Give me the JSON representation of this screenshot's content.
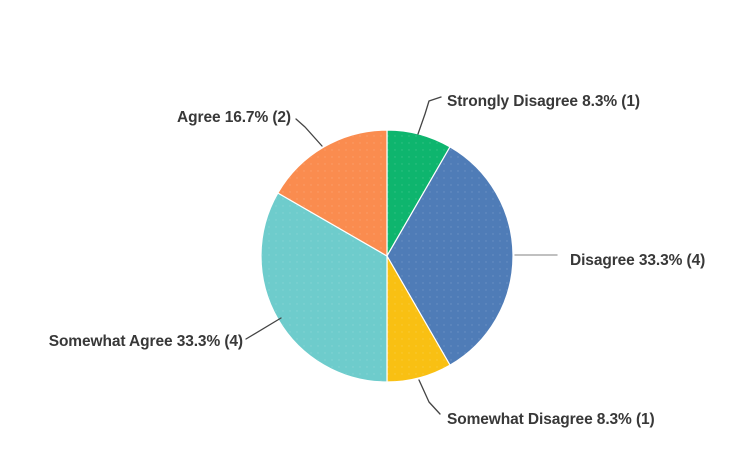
{
  "chart_data": {
    "type": "pie",
    "title": "",
    "categories": [
      "Strongly Disagree",
      "Disagree",
      "Somewhat Disagree",
      "Somewhat Agree",
      "Agree"
    ],
    "values": [
      1,
      4,
      1,
      4,
      2
    ],
    "total_responses": 12,
    "direction": "clockwise",
    "start_angle_deg": 0,
    "legend_position": "none",
    "label_text_color": "#383838",
    "slice_border_color": "#ffffff",
    "slices": [
      {
        "label": "Strongly Disagree",
        "percent": "8.3%",
        "count": 1,
        "display": "Strongly Disagree 8.3% (1)",
        "color": "#0eb56e"
      },
      {
        "label": "Disagree",
        "percent": "33.3%",
        "count": 4,
        "display": "Disagree 33.3% (4)",
        "color": "#4f7cb7"
      },
      {
        "label": "Somewhat Disagree",
        "percent": "8.3%",
        "count": 1,
        "display": "Somewhat Disagree 8.3% (1)",
        "color": "#f9c013"
      },
      {
        "label": "Somewhat Agree",
        "percent": "33.3%",
        "count": 4,
        "display": "Somewhat Agree 33.3% (4)",
        "color": "#6ecccc"
      },
      {
        "label": "Agree",
        "percent": "16.7%",
        "count": 2,
        "display": "Agree 16.7% (2)",
        "color": "#fa8c4f"
      }
    ]
  }
}
